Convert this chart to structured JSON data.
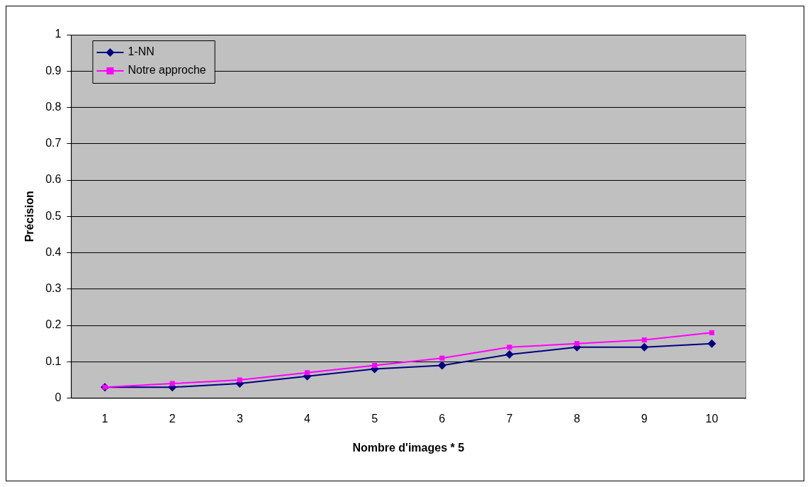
{
  "chart_data": {
    "type": "line",
    "xlabel": "Nombre d'images * 5",
    "ylabel": "Précision",
    "categories": [
      "1",
      "2",
      "3",
      "4",
      "5",
      "6",
      "7",
      "8",
      "9",
      "10"
    ],
    "series": [
      {
        "name": "1-NN",
        "color": "#000080",
        "marker": "diamond",
        "values": [
          0.03,
          0.03,
          0.04,
          0.06,
          0.08,
          0.09,
          0.12,
          0.14,
          0.14,
          0.15
        ]
      },
      {
        "name": "Notre approche",
        "color": "#ff00ff",
        "marker": "square",
        "values": [
          0.03,
          0.04,
          0.05,
          0.07,
          0.09,
          0.11,
          0.14,
          0.15,
          0.16,
          0.18
        ]
      }
    ],
    "ylim": [
      0,
      1
    ],
    "yticks": [
      0,
      0.1,
      0.2,
      0.3,
      0.4,
      0.5,
      0.6,
      0.7,
      0.8,
      0.9,
      1
    ],
    "grid": "y",
    "legend": "top left",
    "line_style": "solid"
  }
}
